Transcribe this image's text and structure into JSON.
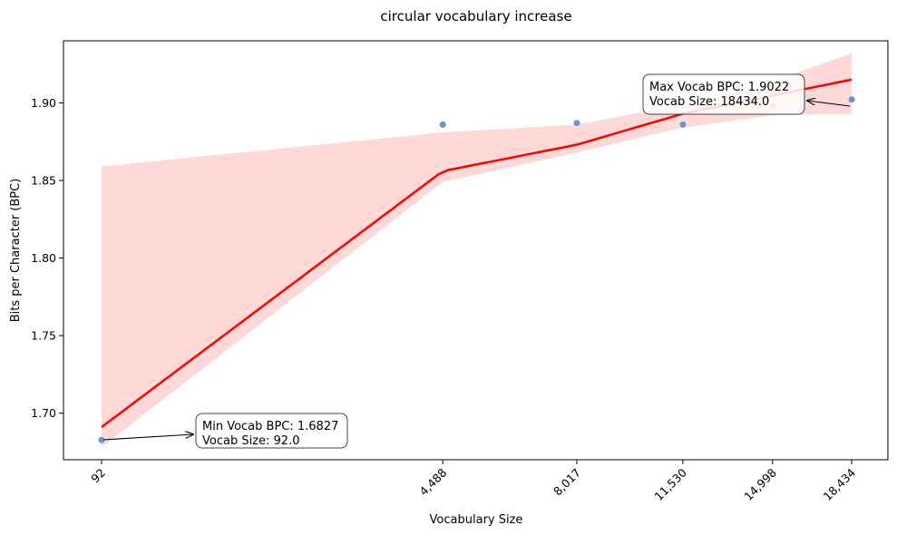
{
  "chart_data": {
    "type": "scatter",
    "title": "circular vocabulary increase",
    "xlabel": "Vocabulary Size",
    "ylabel": "Bits per Character (BPC)",
    "x_scale": "sqrt",
    "xlim": [
      0,
      18434
    ],
    "ylim": [
      1.67,
      1.94
    ],
    "x_ticks": [
      92,
      4488,
      8017,
      11530,
      14998,
      18434
    ],
    "x_tick_labels": [
      "92",
      "4,488",
      "8,017",
      "11,530",
      "14,998",
      "18,434"
    ],
    "y_ticks": [
      1.7,
      1.75,
      1.8,
      1.85,
      1.9
    ],
    "y_tick_labels": [
      "1.70",
      "1.75",
      "1.80",
      "1.85",
      "1.90"
    ],
    "points": [
      {
        "x": 92,
        "y": 1.6827
      },
      {
        "x": 4488,
        "y": 1.886
      },
      {
        "x": 8017,
        "y": 1.887
      },
      {
        "x": 11530,
        "y": 1.886
      },
      {
        "x": 14998,
        "y": 1.898
      },
      {
        "x": 18434,
        "y": 1.9022
      }
    ],
    "point_color": "#6f96c8",
    "fit": {
      "color": "#ff0000",
      "curve": [
        {
          "x": 92,
          "y": 1.691
        },
        {
          "x": 4488,
          "y": 1.856
        },
        {
          "x": 8017,
          "y": 1.873
        },
        {
          "x": 11530,
          "y": 1.893
        },
        {
          "x": 18434,
          "y": 1.915
        }
      ],
      "ci_color": "#ffd8d8",
      "ci_upper": [
        {
          "x": 92,
          "y": 1.859
        },
        {
          "x": 4488,
          "y": 1.881
        },
        {
          "x": 8017,
          "y": 1.886
        },
        {
          "x": 11530,
          "y": 1.899
        },
        {
          "x": 14998,
          "y": 1.914
        },
        {
          "x": 18434,
          "y": 1.932
        }
      ],
      "ci_lower": [
        {
          "x": 92,
          "y": 1.678
        },
        {
          "x": 4488,
          "y": 1.849
        },
        {
          "x": 8017,
          "y": 1.868
        },
        {
          "x": 11530,
          "y": 1.884
        },
        {
          "x": 14998,
          "y": 1.892
        },
        {
          "x": 18434,
          "y": 1.893
        }
      ]
    },
    "annotations": [
      {
        "lines": [
          "Max Vocab BPC: 1.9022",
          "Vocab Size: 18434.0"
        ],
        "target": {
          "x": 18434,
          "y": 1.9022
        }
      },
      {
        "lines": [
          "Min Vocab BPC: 1.6827",
          "Vocab Size: 92.0"
        ],
        "target": {
          "x": 92,
          "y": 1.6827
        }
      }
    ]
  }
}
